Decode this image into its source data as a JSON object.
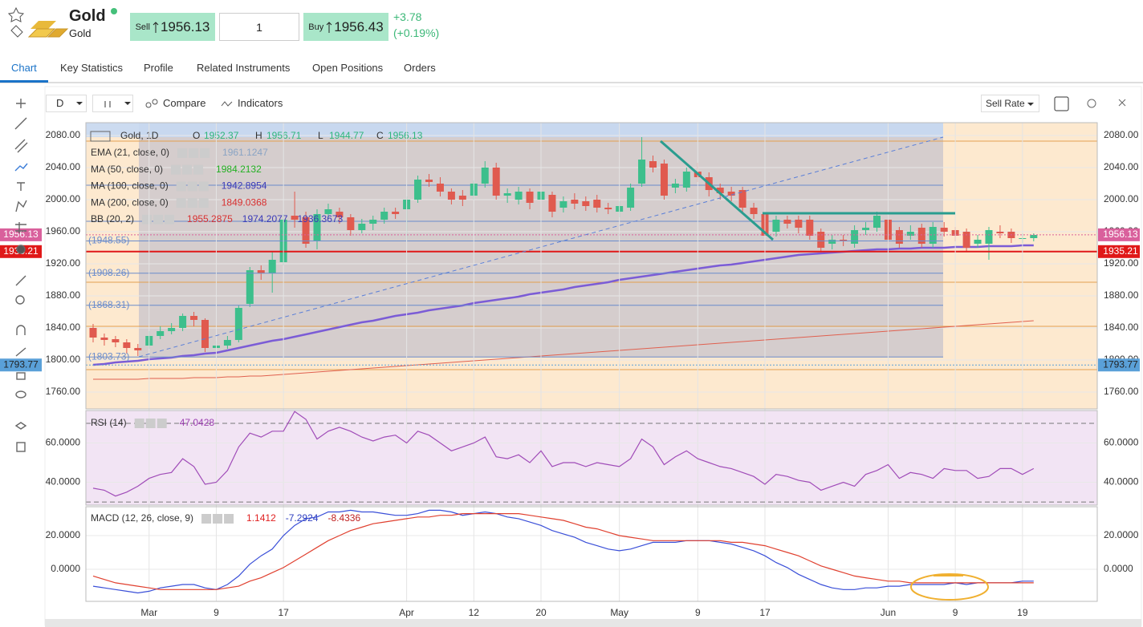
{
  "header": {
    "name": "Gold",
    "subtitle": "Gold",
    "sell_label": "Sell",
    "sell": "1956.13",
    "quantity": "1",
    "buy_label": "Buy",
    "buy": "1956.43",
    "change": "+3.78",
    "change_pct": "(+0.19%)"
  },
  "tabs": [
    "Chart",
    "Key Statistics",
    "Profile",
    "Related Instruments",
    "Open Positions",
    "Orders"
  ],
  "toolbar": {
    "interval": "D",
    "compare": "Compare",
    "indicators": "Indicators",
    "rate": "Sell Rate"
  },
  "chart_data": [
    {
      "type": "candlestick",
      "title": "Gold, 1D",
      "ohlc": [
        {
          "label": "O",
          "value": 1952.37
        },
        {
          "label": "H",
          "value": 1956.71
        },
        {
          "label": "L",
          "value": 1944.77
        },
        {
          "label": "C",
          "value": 1956.13
        }
      ],
      "indicators": [
        {
          "name": "EMA (21, close, 0)",
          "values": [
            1961.1247
          ],
          "colors": [
            "#8aa4c4"
          ]
        },
        {
          "name": "MA (50, close, 0)",
          "values": [
            1984.2132
          ],
          "colors": [
            "#22b022"
          ]
        },
        {
          "name": "MA (100, close, 0)",
          "values": [
            1942.8954
          ],
          "colors": [
            "#3a3ab8"
          ]
        },
        {
          "name": "MA (200, close, 0)",
          "values": [
            1849.0368
          ],
          "colors": [
            "#d83030"
          ]
        },
        {
          "name": "BB (20, 2)",
          "values": [
            1955.2875,
            1974.2077,
            1936.3673
          ],
          "colors": [
            "#d83030",
            "#3a3ab8",
            "#3a3ab8"
          ]
        }
      ],
      "categories": [
        null,
        null,
        null,
        null,
        null,
        "Mar",
        null,
        null,
        null,
        null,
        null,
        "9",
        null,
        null,
        null,
        null,
        null,
        "17",
        null,
        null,
        null,
        null,
        null,
        null,
        null,
        null,
        null,
        null,
        "Apr",
        null,
        null,
        null,
        null,
        null,
        "12",
        null,
        null,
        null,
        null,
        null,
        "20",
        null,
        null,
        null,
        null,
        null,
        null,
        "May",
        null,
        null,
        null,
        null,
        null,
        null,
        "9",
        null,
        null,
        null,
        null,
        null,
        "17",
        null,
        null,
        null,
        null,
        null,
        null,
        null,
        null,
        null,
        null,
        "Jun",
        null,
        null,
        null,
        null,
        null,
        "9",
        null,
        null,
        null,
        null,
        null,
        "19",
        null
      ],
      "open": [
        1840,
        1828,
        1826,
        1822,
        1815,
        1818,
        1830,
        1836,
        1840,
        1855,
        1850,
        1815,
        1818,
        1825,
        1870,
        1912,
        1908,
        1922,
        1980,
        1978,
        1948,
        1982,
        1985,
        1978,
        1962,
        1970,
        1975,
        1985,
        1988,
        2000,
        2025,
        2020,
        2010,
        2005,
        2005,
        2020,
        2040,
        2005,
        2000,
        2010,
        2000,
        2006,
        1990,
        2000,
        1998,
        2000,
        1990,
        1985,
        1990,
        2020,
        2048,
        2045,
        2015,
        2015,
        2035,
        2028,
        2015,
        2010,
        2012,
        1990,
        1982,
        1960,
        1975,
        1975,
        1975,
        1960,
        1945,
        1950,
        1945,
        1962,
        1965,
        1975,
        1962,
        1955,
        1965,
        1945,
        1965,
        1962,
        1960,
        1945,
        1945,
        1960,
        1960,
        1952,
        1952
      ],
      "high": [
        1845,
        1833,
        1830,
        1826,
        1820,
        1836,
        1842,
        1846,
        1858,
        1860,
        1852,
        1824,
        1830,
        1868,
        1916,
        1918,
        1935,
        1982,
        2010,
        1985,
        1988,
        1995,
        1990,
        1982,
        1976,
        1980,
        1990,
        1990,
        2004,
        2030,
        2032,
        2028,
        2014,
        2012,
        2024,
        2048,
        2046,
        2014,
        2016,
        2014,
        2016,
        2010,
        2004,
        2008,
        2004,
        2006,
        1996,
        1998,
        2020,
        2078,
        2055,
        2050,
        2026,
        2040,
        2046,
        2034,
        2020,
        2016,
        2016,
        1996,
        1986,
        1980,
        1980,
        1980,
        1980,
        1964,
        1956,
        1956,
        1968,
        1972,
        1985,
        1980,
        1966,
        1968,
        1970,
        1972,
        1972,
        1966,
        1964,
        1956,
        1966,
        1968,
        1964,
        1958,
        1958
      ],
      "low": [
        1822,
        1818,
        1816,
        1808,
        1805,
        1814,
        1826,
        1832,
        1836,
        1842,
        1810,
        1810,
        1814,
        1822,
        1866,
        1900,
        1884,
        1918,
        1965,
        1940,
        1938,
        1976,
        1970,
        1955,
        1958,
        1962,
        1970,
        1976,
        1950,
        1996,
        2016,
        2004,
        1994,
        1992,
        2000,
        2015,
        2000,
        1996,
        1994,
        1988,
        1994,
        1978,
        1984,
        1988,
        1986,
        1984,
        1982,
        1978,
        1986,
        2016,
        2034,
        2000,
        2008,
        2010,
        2022,
        2004,
        2000,
        1998,
        1984,
        1976,
        1950,
        1954,
        1964,
        1958,
        1950,
        1934,
        1938,
        1942,
        1940,
        1956,
        1960,
        1945,
        1940,
        1950,
        1940,
        1940,
        1954,
        1948,
        1935,
        1940,
        1925,
        1952,
        1946,
        1946,
        1948
      ],
      "close": [
        1828,
        1825,
        1822,
        1815,
        1812,
        1830,
        1836,
        1840,
        1855,
        1850,
        1815,
        1818,
        1825,
        1865,
        1912,
        1908,
        1925,
        1975,
        1975,
        1945,
        1982,
        1988,
        1978,
        1962,
        1970,
        1975,
        1985,
        1982,
        2000,
        2025,
        2022,
        2010,
        2000,
        2000,
        2020,
        2040,
        2005,
        2008,
        2010,
        1996,
        2010,
        1985,
        1998,
        1995,
        1992,
        1990,
        1988,
        1992,
        2015,
        2050,
        2040,
        2005,
        2020,
        2035,
        2028,
        2012,
        2008,
        2005,
        1990,
        1982,
        1955,
        1975,
        1970,
        1965,
        1955,
        1940,
        1950,
        1948,
        1962,
        1965,
        1980,
        1950,
        1945,
        1960,
        1945,
        1966,
        1960,
        1955,
        1940,
        1950,
        1962,
        1958,
        1952,
        1952,
        1956
      ],
      "up_color": "#3dbf8c",
      "down_color": "#e05a4f",
      "overlays": [
        {
          "color": "#7b5cd6",
          "values": [
            1794,
            1795,
            1797,
            1798,
            1799,
            1801,
            1802,
            1803,
            1805,
            1806,
            1808,
            1809,
            1812,
            1815,
            1818,
            1821,
            1824,
            1826,
            1829,
            1832,
            1835,
            1838,
            1841,
            1844,
            1847,
            1849,
            1852,
            1855,
            1857,
            1859,
            1862,
            1864,
            1866,
            1868,
            1871,
            1873,
            1875,
            1877,
            1879,
            1882,
            1884,
            1886,
            1888,
            1891,
            1893,
            1895,
            1897,
            1900,
            1902,
            1904,
            1906,
            1908,
            1910,
            1912,
            1914,
            1916,
            1918,
            1919,
            1921,
            1923,
            1925,
            1927,
            1929,
            1931,
            1932,
            1933,
            1934,
            1935,
            1936,
            1937,
            1938,
            1938,
            1939,
            1939,
            1940,
            1940,
            1940,
            1941,
            1941,
            1941,
            1942,
            1942,
            1942,
            1943,
            1943
          ]
        },
        {
          "color": "#e0604f",
          "values": [
            1776,
            1776,
            1776,
            1776,
            1776,
            1777,
            1777,
            1777,
            1777,
            1778,
            1778,
            1778,
            1779,
            1779,
            1780,
            1780,
            1781,
            1782,
            1783,
            1784,
            1785,
            1786,
            1787,
            1788,
            1789,
            1790,
            1791,
            1792,
            1793,
            1794,
            1795,
            1796,
            1797,
            1798,
            1799,
            1800,
            1801,
            1802,
            1803,
            1804,
            1805,
            1806,
            1807,
            1808,
            1809,
            1810,
            1811,
            1812,
            1813,
            1814,
            1815,
            1816,
            1817,
            1818,
            1819,
            1820,
            1821,
            1822,
            1823,
            1824,
            1825,
            1826,
            1827,
            1828,
            1829,
            1830,
            1831,
            1832,
            1833,
            1834,
            1835,
            1836,
            1837,
            1838,
            1839,
            1840,
            1841,
            1842,
            1843,
            1844,
            1845,
            1846,
            1847,
            1848,
            1849
          ]
        }
      ],
      "levels": [
        {
          "value": 1948.55,
          "label": "(1948.55)"
        },
        {
          "value": 1908.26,
          "label": "(1908.26)"
        },
        {
          "value": 1868.31,
          "label": "(1868.31)"
        },
        {
          "value": 1803.73,
          "label": "(1803.73)"
        }
      ],
      "markers": [
        {
          "value": 1956.13,
          "color": "#d9609c"
        },
        {
          "value": 1935.21,
          "color": "#e01818"
        },
        {
          "value": 1793.77,
          "color": "#5aa0d8"
        }
      ],
      "ylim": [
        1739,
        2096
      ],
      "yticks": [
        {
          "value": 2080,
          "label": "2080.00"
        },
        {
          "value": 2040,
          "label": "2040.00"
        },
        {
          "value": 2000,
          "label": "2000.00"
        },
        {
          "value": 1960,
          "label": "1960.00"
        },
        {
          "value": 1920,
          "label": "1920.00"
        },
        {
          "value": 1880,
          "label": "1880.00"
        },
        {
          "value": 1840,
          "label": "1840.00"
        },
        {
          "value": 1800,
          "label": "1800.00"
        },
        {
          "value": 1760,
          "label": "1760.00"
        }
      ],
      "grid": true
    },
    {
      "type": "line",
      "indicators": [
        {
          "name": "RSI (14)",
          "values": [
            47.0428
          ],
          "colors": [
            "#9b3fb0"
          ]
        }
      ],
      "lines": [
        {
          "color": "#a04cb8",
          "values": [
            37,
            36,
            33,
            35,
            38,
            42,
            44,
            45,
            52,
            48,
            39,
            40,
            46,
            58,
            65,
            63,
            66,
            66,
            76,
            72,
            62,
            66,
            68,
            66,
            63,
            61,
            63,
            64,
            60,
            66,
            64,
            60,
            56,
            58,
            60,
            63,
            53,
            52,
            54,
            50,
            56,
            48,
            50,
            50,
            48,
            50,
            49,
            48,
            52,
            62,
            58,
            49,
            53,
            56,
            52,
            50,
            48,
            47,
            45,
            43,
            39,
            44,
            43,
            41,
            40,
            36,
            38,
            40,
            38,
            44,
            46,
            49,
            42,
            45,
            44,
            42,
            47,
            46,
            46,
            42,
            43,
            47,
            47,
            44,
            47
          ]
        }
      ],
      "levels": [
        30,
        70
      ],
      "ylim": [
        28.4,
        76.5
      ],
      "yticks": [
        {
          "value": 60,
          "label": "60.0000"
        },
        {
          "value": 40,
          "label": "40.0000"
        }
      ],
      "grid": true
    },
    {
      "type": "line",
      "indicators": [
        {
          "name": "MACD (12, 26, close, 9)",
          "values": [
            1.1412,
            -7.2924,
            -8.4336
          ],
          "colors": [
            "#e02020",
            "#3040c0",
            "#c02020"
          ]
        }
      ],
      "lines": [
        {
          "color": "#3a4fd8",
          "values": [
            -10,
            -11,
            -12,
            -13,
            -14,
            -13,
            -11,
            -10,
            -9,
            -9,
            -11,
            -12,
            -9,
            -4,
            3,
            8,
            12,
            20,
            26,
            30,
            31,
            34,
            34,
            35,
            34,
            34,
            33,
            32,
            32,
            33,
            35,
            35,
            34,
            32,
            33,
            34,
            33,
            31,
            30,
            28,
            26,
            23,
            21,
            19,
            16,
            14,
            12,
            11,
            12,
            14,
            16,
            16,
            16,
            17,
            17,
            17,
            16,
            15,
            13,
            11,
            8,
            4,
            1,
            -3,
            -6,
            -9,
            -11,
            -12,
            -12,
            -11,
            -11,
            -10,
            -10,
            -9,
            -9,
            -9,
            -9,
            -8,
            -9,
            -8,
            -8,
            -8,
            -8,
            -7,
            -7
          ]
        },
        {
          "color": "#e0402f",
          "values": [
            -4,
            -6,
            -8,
            -9,
            -10,
            -11,
            -12,
            -12,
            -12,
            -12,
            -12,
            -12,
            -11,
            -10,
            -7,
            -5,
            -2,
            1,
            5,
            9,
            13,
            17,
            20,
            23,
            25,
            27,
            28,
            29,
            30,
            31,
            31,
            32,
            32,
            33,
            33,
            33,
            33,
            33,
            33,
            32,
            31,
            30,
            29,
            27,
            25,
            24,
            22,
            20,
            19,
            18,
            17,
            17,
            17,
            17,
            17,
            17,
            17,
            16,
            16,
            15,
            14,
            12,
            10,
            8,
            5,
            2,
            0,
            -2,
            -4,
            -5,
            -6,
            -7,
            -7,
            -8,
            -8,
            -8,
            -8,
            -8,
            -8,
            -8,
            -8,
            -8,
            -8,
            -8,
            -8
          ]
        }
      ],
      "ylim": [
        -19,
        37.1
      ],
      "yticks": [
        {
          "value": 20,
          "label": "20.0000"
        },
        {
          "value": 0,
          "label": "0.0000"
        }
      ],
      "grid": true
    }
  ]
}
